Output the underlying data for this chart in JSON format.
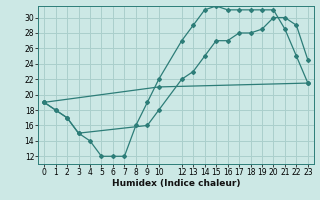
{
  "xlabel": "Humidex (Indice chaleur)",
  "bg_color": "#cce8e5",
  "line_color": "#2d7d78",
  "grid_color": "#aacfcc",
  "xlim": [
    -0.5,
    23.5
  ],
  "ylim": [
    11,
    31.5
  ],
  "yticks": [
    12,
    14,
    16,
    18,
    20,
    22,
    24,
    26,
    28,
    30
  ],
  "xticks": [
    0,
    1,
    2,
    3,
    4,
    5,
    6,
    7,
    8,
    9,
    10,
    12,
    13,
    14,
    15,
    16,
    17,
    18,
    19,
    20,
    21,
    22,
    23
  ],
  "line1_x": [
    0,
    1,
    2,
    3,
    4,
    5,
    6,
    7,
    8,
    9,
    10,
    12,
    13,
    14,
    15,
    16,
    17,
    18,
    19,
    20,
    21,
    22,
    23
  ],
  "line1_y": [
    19,
    18,
    17,
    15,
    14,
    12,
    12,
    12,
    16,
    19,
    22,
    27,
    29,
    31,
    31.5,
    31,
    31,
    31,
    31,
    31,
    28.5,
    25,
    21.5
  ],
  "line2_x": [
    0,
    1,
    2,
    3,
    9,
    10,
    12,
    13,
    14,
    15,
    16,
    17,
    18,
    19,
    20,
    21,
    22,
    23
  ],
  "line2_y": [
    19,
    18,
    17,
    15,
    16,
    18,
    22,
    23,
    25,
    27,
    27,
    28,
    28,
    28.5,
    30,
    30,
    29,
    24.5
  ],
  "line3_x": [
    0,
    10,
    23
  ],
  "line3_y": [
    19,
    21,
    21.5
  ]
}
